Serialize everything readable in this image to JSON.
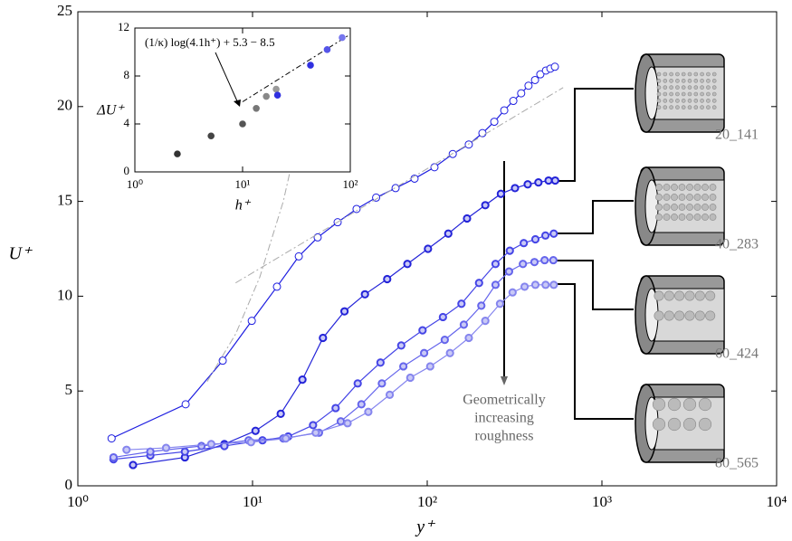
{
  "chart_data": [
    {
      "type": "line",
      "xscale": "log",
      "xlabel": "y⁺",
      "ylabel": "U⁺",
      "xlim": [
        1,
        10000
      ],
      "ylim": [
        0,
        25
      ],
      "xticks": [
        {
          "value": 1,
          "label": "10⁰"
        },
        {
          "value": 10,
          "label": "10¹"
        },
        {
          "value": 100,
          "label": "10²"
        },
        {
          "value": 1000,
          "label": "10³"
        },
        {
          "value": 10000,
          "label": "10⁴"
        }
      ],
      "yticks": [
        0,
        5,
        10,
        15,
        20,
        25
      ],
      "annotation": [
        "Geometrically",
        "increasing",
        "roughness"
      ],
      "series": [
        {
          "color": "#1c1ce0",
          "marker": "open",
          "style": "solid",
          "x": [
            1.56,
            4.14,
            6.75,
            9.9,
            13.8,
            18.4,
            23.6,
            30.7,
            39.4,
            51,
            65.9,
            84.6,
            110,
            140,
            173,
            207,
            242,
            276,
            311,
            345,
            380,
            414,
            444,
            478,
            507,
            538
          ],
          "y": [
            2.5,
            4.3,
            6.6,
            8.7,
            10.5,
            12.1,
            13.1,
            13.9,
            14.6,
            15.2,
            15.7,
            16.2,
            16.8,
            17.5,
            18.0,
            18.6,
            19.2,
            19.8,
            20.3,
            20.7,
            21.1,
            21.4,
            21.7,
            21.9,
            22.0,
            22.1
          ]
        },
        {
          "name": "20_141",
          "color": "#2323d8",
          "marker": "filled",
          "style": "solid",
          "x": [
            2.07,
            4.1,
            6.9,
            10.4,
            14.5,
            19.3,
            25.3,
            33.6,
            44,
            59,
            77,
            101,
            132,
            169,
            215,
            264,
            318,
            376,
            433,
            495,
            540
          ],
          "y": [
            1.1,
            1.5,
            2.2,
            2.9,
            3.8,
            5.6,
            7.8,
            9.2,
            10.1,
            10.9,
            11.7,
            12.5,
            13.3,
            14.1,
            14.8,
            15.4,
            15.7,
            15.9,
            16.0,
            16.1,
            16.1
          ]
        },
        {
          "name": "40_283",
          "color": "#4545e6",
          "marker": "filled",
          "style": "solid",
          "x": [
            1.6,
            2.6,
            4.1,
            6.9,
            11.4,
            16,
            22.2,
            29.9,
            40,
            54,
            71,
            94,
            123,
            157,
            198,
            246,
            297,
            357,
            416,
            475,
            530
          ],
          "y": [
            1.4,
            1.6,
            1.8,
            2.1,
            2.4,
            2.6,
            3.2,
            4.1,
            5.4,
            6.5,
            7.4,
            8.2,
            8.9,
            9.6,
            10.7,
            11.7,
            12.4,
            12.8,
            13.0,
            13.2,
            13.3
          ]
        },
        {
          "name": "60_424",
          "color": "#6565ec",
          "marker": "filled",
          "style": "solid",
          "x": [
            1.6,
            2.6,
            5.1,
            9.5,
            15,
            24,
            32,
            42,
            55,
            73,
            96,
            126,
            162,
            204,
            246,
            294,
            353,
            411,
            470,
            527
          ],
          "y": [
            1.5,
            1.8,
            2.1,
            2.4,
            2.5,
            2.8,
            3.4,
            4.3,
            5.4,
            6.3,
            7.0,
            7.7,
            8.5,
            9.5,
            10.6,
            11.3,
            11.7,
            11.8,
            11.9,
            11.9
          ]
        },
        {
          "name": "80_565",
          "color": "#8585ee",
          "marker": "filled",
          "style": "solid",
          "x": [
            1.9,
            3.2,
            5.8,
            9.8,
            15.5,
            23,
            35,
            46,
            61,
            80,
            104,
            135,
            173,
            215,
            261,
            308,
            361,
            416,
            476,
            530
          ],
          "y": [
            1.9,
            2.0,
            2.2,
            2.3,
            2.5,
            2.8,
            3.3,
            3.9,
            4.8,
            5.7,
            6.3,
            7.0,
            7.8,
            8.7,
            9.6,
            10.2,
            10.5,
            10.6,
            10.6,
            10.6
          ]
        },
        {
          "color": "#aaaaaa",
          "marker": null,
          "style": "dashdot",
          "x": [
            5.5,
            8,
            11,
            15,
            21
          ],
          "y": [
            5.5,
            8,
            11,
            15,
            21
          ]
        },
        {
          "color": "#aaaaaa",
          "marker": null,
          "style": "dashdot",
          "x": [
            8,
            600
          ],
          "y": [
            10.7,
            21.0
          ]
        }
      ]
    },
    {
      "type": "scatter",
      "xscale": "log",
      "xlabel": "h⁺",
      "ylabel": "ΔU⁺",
      "xlim": [
        1,
        100
      ],
      "ylim": [
        0,
        12
      ],
      "xticks": [
        {
          "value": 1,
          "label": "10⁰"
        },
        {
          "value": 10,
          "label": "10¹"
        },
        {
          "value": 100,
          "label": "10²"
        }
      ],
      "yticks": [
        0,
        4,
        8,
        12
      ],
      "annotation": "(1/κ) log(4.1h⁺) + 5.3 − 8.5",
      "x": [
        2.48,
        5.1,
        10,
        13.4,
        16.6,
        20.5,
        21.1,
        42.7,
        61,
        84
      ],
      "y": [
        1.5,
        3.0,
        4.0,
        5.3,
        6.3,
        6.9,
        6.4,
        8.9,
        10.2,
        11.2
      ],
      "colors": [
        "#333333",
        "#444444",
        "#555555",
        "#777777",
        "#888888",
        "#999999",
        "#3030e0",
        "#3030e0",
        "#5555e8",
        "#7777ee"
      ],
      "fit": {
        "x": [
          10,
          100
        ],
        "y": [
          5.85,
          11.48
        ]
      }
    }
  ]
}
